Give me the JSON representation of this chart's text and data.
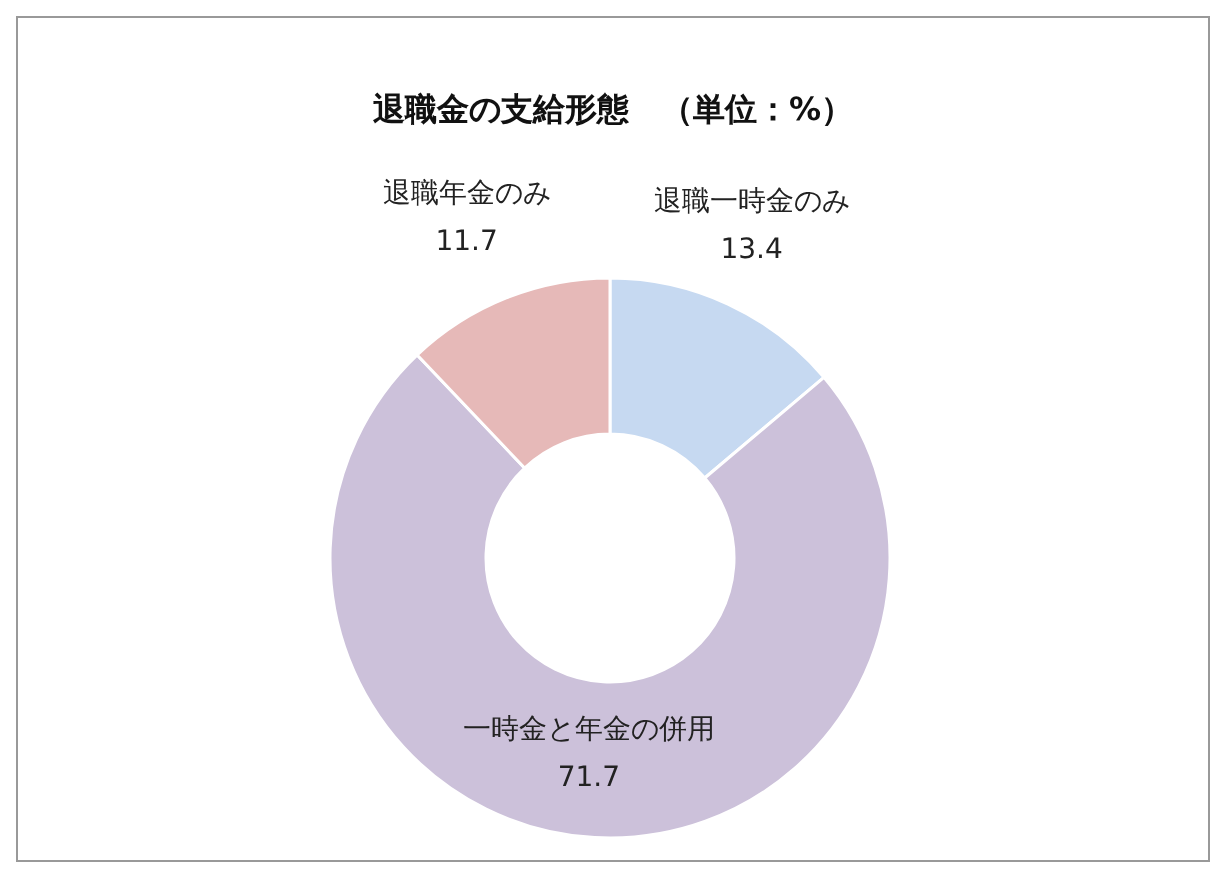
{
  "chart_data": {
    "type": "donut",
    "title": "退職金の支給形態　（単位：%）",
    "categories": [
      "退職一時金のみ",
      "一時金と年金の併用",
      "退職年金のみ"
    ],
    "values": [
      13.4,
      71.7,
      11.7
    ],
    "colors": [
      "#c6d9f1",
      "#ccc1da",
      "#e6b9b8"
    ],
    "data_labels": true
  }
}
